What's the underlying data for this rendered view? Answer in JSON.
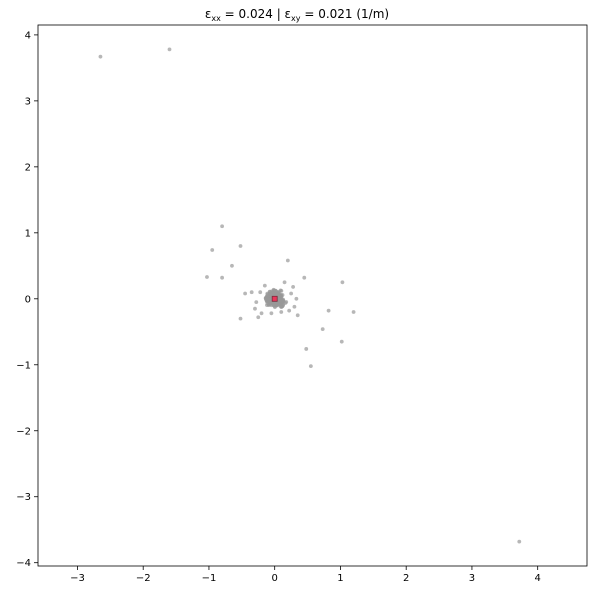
{
  "chart_data": {
    "type": "scatter",
    "title": {
      "prefix": "ε",
      "sub1": "xx",
      "mid1": " =  0.024 | ε",
      "sub2": "xy",
      "mid2": " =  0.021 (1/m)"
    },
    "xlabel": "",
    "ylabel": "",
    "xlim": [
      -3.6,
      4.75
    ],
    "ylim": [
      -4.05,
      4.15
    ],
    "xticks": [
      -3,
      -2,
      -1,
      0,
      1,
      2,
      3,
      4
    ],
    "yticks": [
      -4,
      -3,
      -2,
      -1,
      0,
      1,
      2,
      3,
      4
    ],
    "grid": false,
    "colors": {
      "points": "#999999",
      "center_fill": "#e8365a",
      "center_edge": "#7a2a3a",
      "axes": "#000000"
    },
    "points": [
      {
        "x": -2.65,
        "y": 3.67
      },
      {
        "x": -1.6,
        "y": 3.78
      },
      {
        "x": 3.72,
        "y": -3.68
      },
      {
        "x": -0.8,
        "y": 1.1
      },
      {
        "x": -0.95,
        "y": 0.74
      },
      {
        "x": -0.52,
        "y": 0.8
      },
      {
        "x": -0.65,
        "y": 0.5
      },
      {
        "x": -1.03,
        "y": 0.33
      },
      {
        "x": -0.8,
        "y": 0.32
      },
      {
        "x": 0.2,
        "y": 0.58
      },
      {
        "x": 0.45,
        "y": 0.32
      },
      {
        "x": 1.03,
        "y": 0.25
      },
      {
        "x": 0.82,
        "y": -0.18
      },
      {
        "x": 1.2,
        "y": -0.2
      },
      {
        "x": 0.73,
        "y": -0.46
      },
      {
        "x": 1.02,
        "y": -0.65
      },
      {
        "x": 0.48,
        "y": -0.76
      },
      {
        "x": 0.55,
        "y": -1.02
      },
      {
        "x": -0.52,
        "y": -0.3
      },
      {
        "x": -0.45,
        "y": 0.08
      },
      {
        "x": -0.35,
        "y": 0.1
      },
      {
        "x": -0.25,
        "y": -0.28
      },
      {
        "x": -0.3,
        "y": -0.15
      },
      {
        "x": -0.2,
        "y": -0.22
      },
      {
        "x": 0.35,
        "y": -0.25
      },
      {
        "x": 0.33,
        "y": 0.0
      },
      {
        "x": 0.28,
        "y": 0.18
      },
      {
        "x": 0.3,
        "y": -0.12
      },
      {
        "x": -0.05,
        "y": -0.22
      },
      {
        "x": 0.1,
        "y": -0.2
      },
      {
        "x": 0.15,
        "y": 0.25
      },
      {
        "x": -0.15,
        "y": 0.2
      },
      {
        "x": 0.22,
        "y": -0.18
      },
      {
        "x": -0.22,
        "y": 0.1
      },
      {
        "x": -0.28,
        "y": -0.05
      },
      {
        "x": 0.25,
        "y": 0.08
      }
    ],
    "cluster": {
      "center": [
        0.0,
        0.0
      ],
      "spread_x": 0.09,
      "spread_y": 0.07,
      "count": 420
    },
    "center_marker": {
      "x": 0.0,
      "y": 0.0
    }
  }
}
